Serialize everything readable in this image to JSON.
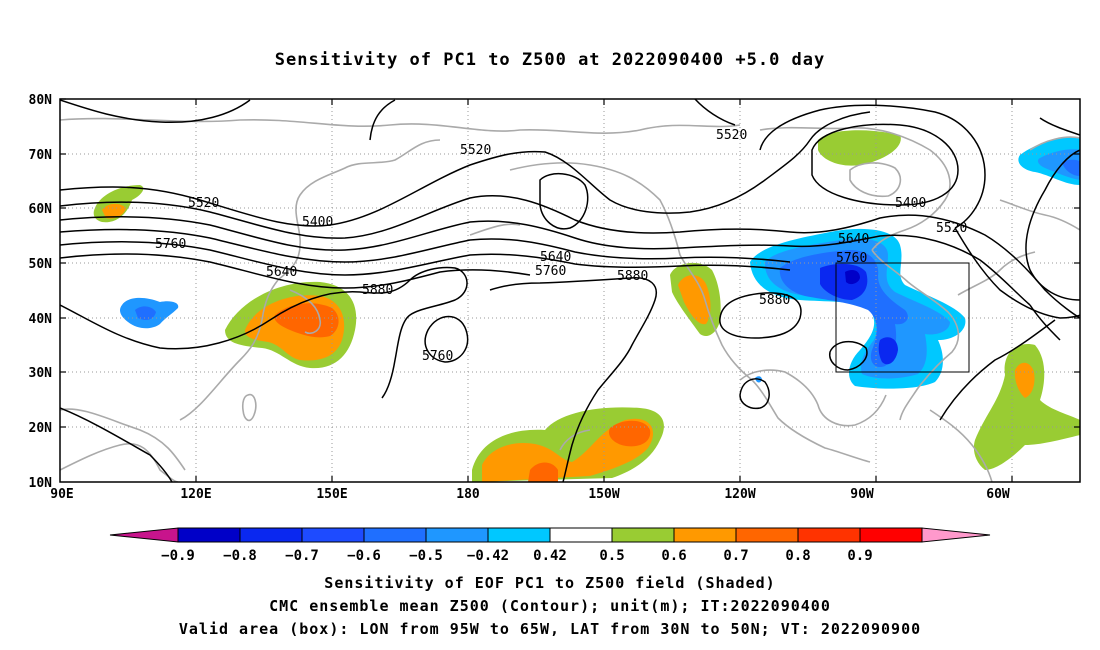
{
  "title": "Sensitivity of PC1 to Z500 at 2022090400 +5.0 day",
  "lat_labels": [
    "80N",
    "70N",
    "60N",
    "50N",
    "40N",
    "30N",
    "20N",
    "10N"
  ],
  "lon_labels": [
    "90E",
    "120E",
    "150E",
    "180",
    "150W",
    "120W",
    "90W",
    "60W"
  ],
  "colorbar": {
    "labels": [
      "-0.9",
      "-0.8",
      "-0.7",
      "-0.6",
      "-0.5",
      "-0.42",
      "0.42",
      "0.5",
      "0.6",
      "0.7",
      "0.8",
      "0.9"
    ],
    "colors": [
      "#0000c8",
      "#0a28f0",
      "#1e4bff",
      "#1f6fff",
      "#1f97ff",
      "#00c8ff",
      "#ffffff",
      "#99cc33",
      "#ff9900",
      "#ff6600",
      "#ff3300",
      "#ff0000"
    ],
    "left_extend_color": "#c8148c",
    "right_extend_color": "#ff99cc"
  },
  "contour_labels": [
    "5520",
    "5520",
    "5520",
    "5520",
    "5400",
    "5400",
    "5760",
    "5760",
    "5760",
    "5760",
    "5640",
    "5640",
    "5640",
    "5880",
    "5880",
    "5880"
  ],
  "captions": [
    "Sensitivity of EOF PC1 to Z500 field (Shaded)",
    "CMC ensemble mean Z500 (Contour); unit(m); IT:2022090400",
    "Valid area (box): LON from 95W to 65W, LAT from 30N to 50N; VT: 2022090900"
  ]
}
